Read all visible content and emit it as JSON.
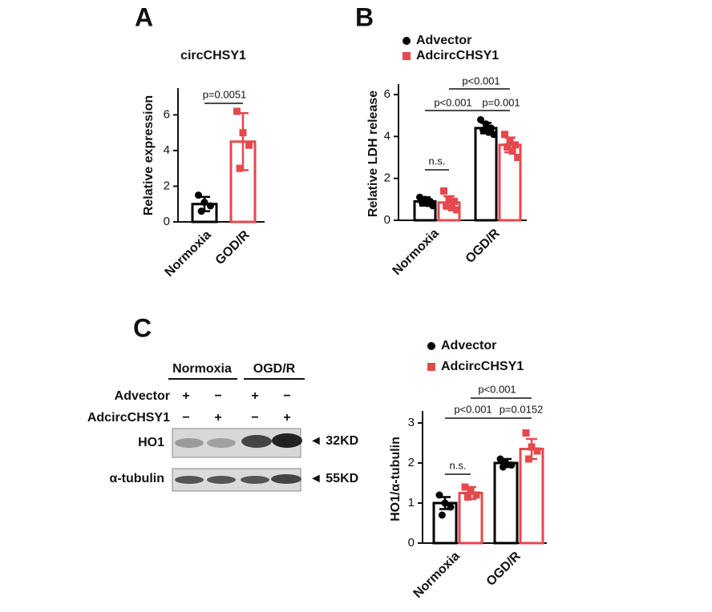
{
  "panels": [
    "A",
    "B",
    "C"
  ],
  "chart_data": [
    {
      "type": "bar",
      "title": "circCHSY1",
      "y_label": "Relative expression",
      "categories": [
        "Normoxia",
        "GOD/R"
      ],
      "values": [
        1.0,
        4.5
      ],
      "errors": [
        0.4,
        1.6
      ],
      "points": [
        [
          1.5,
          1.1,
          0.9,
          0.6
        ],
        [
          6.2,
          5.0,
          4.3,
          3.0
        ]
      ],
      "colors": [
        "#000000",
        "#e5484d"
      ],
      "ylim": [
        0,
        7.5
      ],
      "yticks": [
        0,
        2,
        4,
        6
      ],
      "annotations": [
        "p=0.0051"
      ]
    },
    {
      "type": "bar",
      "y_label": "Relative LDH release",
      "categories": [
        "Normoxia",
        "OGD/R"
      ],
      "series": [
        {
          "name": "Advector",
          "color": "#000000",
          "values": [
            0.9,
            4.4
          ],
          "errors": [
            0.2,
            0.25
          ],
          "points": [
            [
              1.1,
              1.0,
              0.9,
              0.85,
              0.8,
              0.7
            ],
            [
              4.8,
              4.6,
              4.4,
              4.3,
              4.2,
              4.1
            ]
          ]
        },
        {
          "name": "AdcircCHSY1",
          "color": "#e5484d",
          "values": [
            0.85,
            3.6
          ],
          "errors": [
            0.3,
            0.35
          ],
          "points": [
            [
              1.4,
              1.0,
              0.9,
              0.7,
              0.6,
              0.5
            ],
            [
              4.1,
              3.8,
              3.6,
              3.5,
              3.3,
              3.0
            ]
          ]
        }
      ],
      "ylim": [
        0,
        6.5
      ],
      "yticks": [
        0,
        2,
        4,
        6
      ],
      "legend": "top",
      "annotations": [
        "n.s.",
        "p<0.001",
        "p=0.001",
        "p<0.001"
      ]
    },
    {
      "type": "bar",
      "y_label": "HO1/α-tubulin",
      "categories": [
        "Normoxia",
        "OGD/R"
      ],
      "series": [
        {
          "name": "Advector",
          "color": "#000000",
          "values": [
            1.0,
            2.0
          ],
          "errors": [
            0.15,
            0.1
          ],
          "points": [
            [
              1.2,
              1.0,
              0.9,
              0.7
            ],
            [
              2.1,
              2.0,
              1.95,
              1.9
            ]
          ]
        },
        {
          "name": "AdcircCHSY1",
          "color": "#e5484d",
          "values": [
            1.25,
            2.35
          ],
          "errors": [
            0.15,
            0.25
          ],
          "points": [
            [
              1.4,
              1.3,
              1.2,
              1.15
            ],
            [
              2.75,
              2.4,
              2.3,
              2.1
            ]
          ]
        }
      ],
      "ylim": [
        0,
        3.3
      ],
      "yticks": [
        0,
        1,
        2,
        3
      ],
      "legend": "top",
      "annotations": [
        "n.s.",
        "p<0.001",
        "p=0.0152",
        "p<0.001"
      ]
    }
  ],
  "blot": {
    "groups": [
      "Normoxia",
      "OGD/R"
    ],
    "rows": [
      {
        "label": "Advector",
        "signs": [
          "+",
          "−",
          "+",
          "−"
        ]
      },
      {
        "label": "AdcircCHSY1",
        "signs": [
          "−",
          "+",
          "−",
          "+"
        ]
      }
    ],
    "bands": [
      {
        "label": "HO1",
        "size": "◄ 32KD"
      },
      {
        "label": "α-tubulin",
        "size": "◄ 55KD"
      }
    ]
  }
}
